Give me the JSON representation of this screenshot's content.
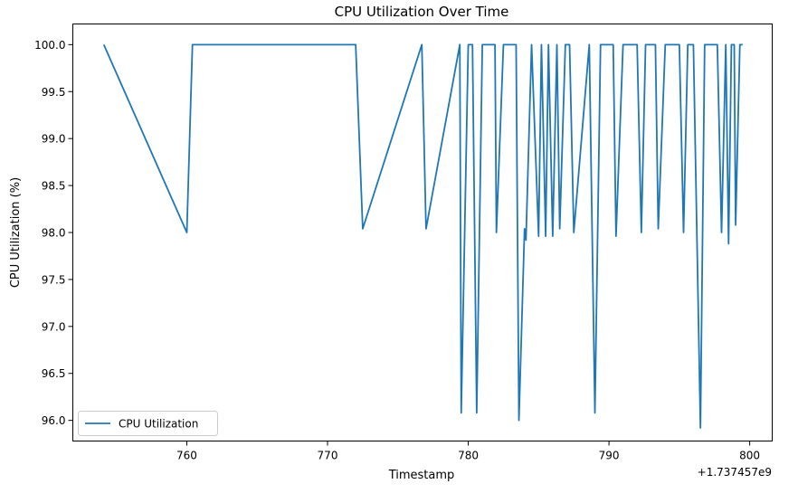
{
  "chart_data": {
    "type": "line",
    "title": "CPU Utilization Over Time",
    "xlabel": "Timestamp",
    "ylabel": "CPU Utilization (%)",
    "x_offset_label": "+1.737457e9",
    "xlim": [
      751.9,
      801.6
    ],
    "ylim": [
      95.78,
      100.22
    ],
    "xticks": [
      760,
      770,
      780,
      790,
      800
    ],
    "xtick_labels": [
      "760",
      "770",
      "780",
      "790",
      "800"
    ],
    "yticks": [
      96.0,
      96.5,
      97.0,
      97.5,
      98.0,
      98.5,
      99.0,
      99.5,
      100.0
    ],
    "ytick_labels": [
      "96.0",
      "96.5",
      "97.0",
      "97.5",
      "98.0",
      "98.5",
      "99.0",
      "99.5",
      "100.0"
    ],
    "grid": false,
    "legend_position": "lower-left",
    "series": [
      {
        "name": "CPU Utilization",
        "color": "#1f77b4",
        "x": [
          754.1,
          760.0,
          760.4,
          772.0,
          772.5,
          776.7,
          777.0,
          779.4,
          779.5,
          780.0,
          780.3,
          780.6,
          781.0,
          781.9,
          782.0,
          782.5,
          783.4,
          783.6,
          784.0,
          784.1,
          784.5,
          785.0,
          785.2,
          785.5,
          785.7,
          786.0,
          786.3,
          786.5,
          786.9,
          787.2,
          787.5,
          788.6,
          789.0,
          789.4,
          790.3,
          790.5,
          791.0,
          792.0,
          792.3,
          792.6,
          793.3,
          793.5,
          794.0,
          795.0,
          795.3,
          795.6,
          796.0,
          796.5,
          796.8,
          797.7,
          798.0,
          798.3,
          798.5,
          798.7,
          798.9,
          799.0,
          799.3,
          799.5
        ],
        "y": [
          100.0,
          98.0,
          100.0,
          100.0,
          98.04,
          100.0,
          98.04,
          100.0,
          96.08,
          100.0,
          100.0,
          96.08,
          100.0,
          100.0,
          98.0,
          100.0,
          100.0,
          96.0,
          98.04,
          97.92,
          100.0,
          97.96,
          100.0,
          97.96,
          100.0,
          97.96,
          100.0,
          98.04,
          100.0,
          100.0,
          98.0,
          100.0,
          96.08,
          100.0,
          100.0,
          97.96,
          100.0,
          100.0,
          98.0,
          100.0,
          100.0,
          98.04,
          100.0,
          100.0,
          98.0,
          100.0,
          100.0,
          95.92,
          100.0,
          100.0,
          98.0,
          100.0,
          97.88,
          100.0,
          100.0,
          98.08,
          100.0,
          100.0
        ]
      }
    ]
  }
}
